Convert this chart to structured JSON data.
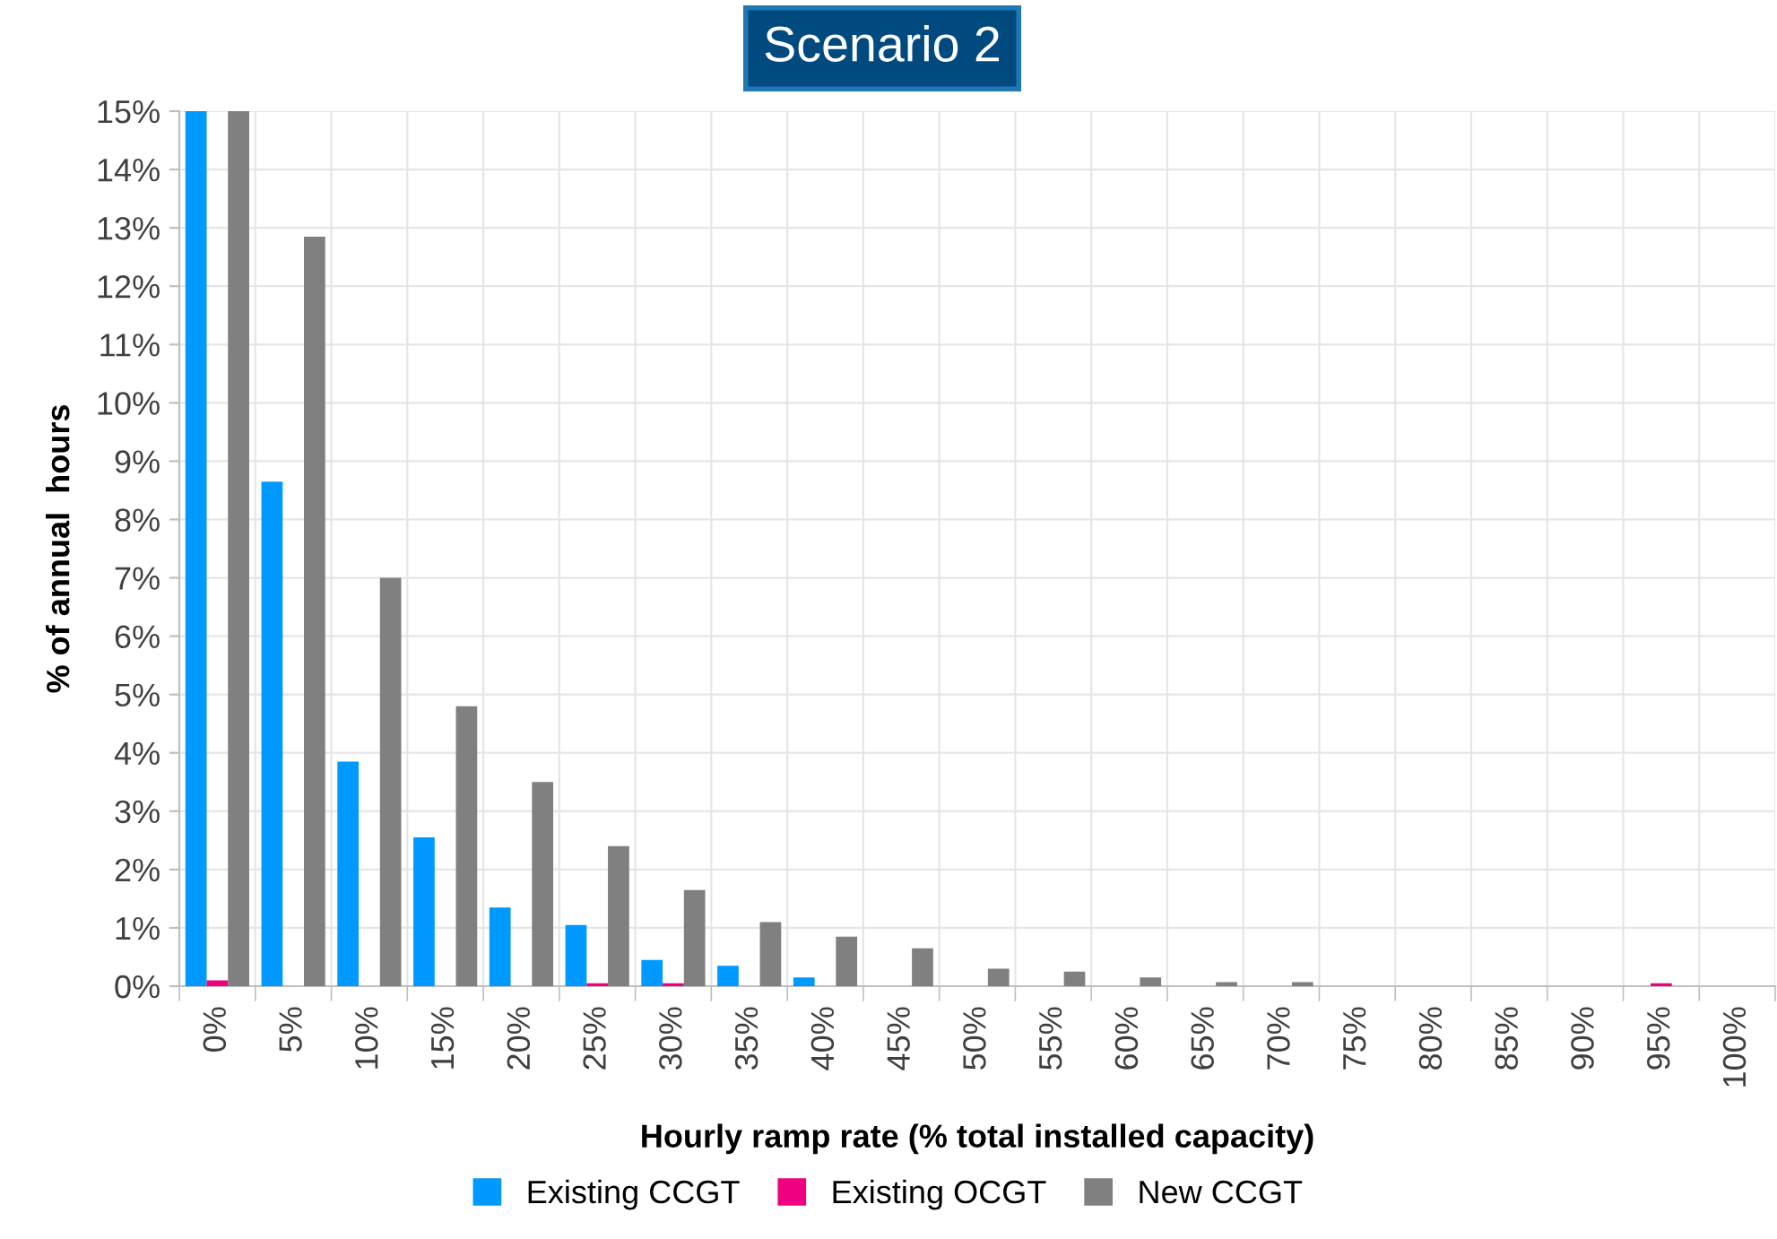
{
  "chart_data": {
    "type": "bar",
    "title": "Scenario 2",
    "xlabel": "Hourly ramp rate (% total installed capacity)",
    "ylabel": "% of annual  hours",
    "categories": [
      "0%",
      "5%",
      "10%",
      "15%",
      "20%",
      "25%",
      "30%",
      "35%",
      "40%",
      "45%",
      "50%",
      "55%",
      "60%",
      "65%",
      "70%",
      "75%",
      "80%",
      "85%",
      "90%",
      "95%",
      "100%"
    ],
    "series": [
      {
        "name": "Existing CCGT",
        "color": "#0099ff",
        "values": [
          15,
          8.65,
          3.85,
          2.55,
          1.35,
          1.05,
          0.45,
          0.35,
          0.15,
          0,
          0,
          0,
          0,
          0,
          0,
          0,
          0,
          0,
          0,
          0,
          0
        ]
      },
      {
        "name": "Existing OCGT",
        "color": "#ee0080",
        "values": [
          0.1,
          0,
          0,
          0,
          0,
          0.05,
          0.05,
          0,
          0,
          0,
          0,
          0,
          0,
          0,
          0,
          0,
          0,
          0,
          0,
          0.05,
          0
        ]
      },
      {
        "name": "New CCGT",
        "color": "#808080",
        "values": [
          15,
          12.85,
          7.0,
          4.8,
          3.5,
          2.4,
          1.65,
          1.1,
          0.85,
          0.65,
          0.3,
          0.25,
          0.15,
          0.07,
          0.07,
          0,
          0,
          0,
          0,
          0,
          0
        ]
      }
    ],
    "ylim": [
      0,
      15
    ],
    "yticks": [
      {
        "value": 0,
        "label": "0%"
      },
      {
        "value": 1,
        "label": "1%"
      },
      {
        "value": 2,
        "label": "2%"
      },
      {
        "value": 3,
        "label": "3%"
      },
      {
        "value": 4,
        "label": "4%"
      },
      {
        "value": 5,
        "label": "5%"
      },
      {
        "value": 6,
        "label": "6%"
      },
      {
        "value": 7,
        "label": "7%"
      },
      {
        "value": 8,
        "label": "8%"
      },
      {
        "value": 9,
        "label": "9%"
      },
      {
        "value": 10,
        "label": "10%"
      },
      {
        "value": 11,
        "label": "11%"
      },
      {
        "value": 12,
        "label": "12%"
      },
      {
        "value": 13,
        "label": "13%"
      },
      {
        "value": 14,
        "label": "14%"
      },
      {
        "value": 15,
        "label": "15%"
      }
    ],
    "grid": true,
    "legend": "bottom"
  }
}
